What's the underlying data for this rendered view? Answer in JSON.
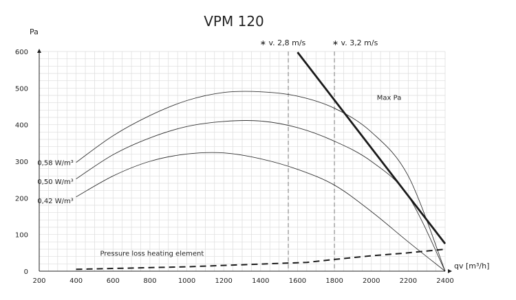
{
  "chart_data": {
    "type": "line",
    "title": "VPM 120",
    "xlabel": "qv [m³/h]",
    "ylabel": "Pa",
    "xlim": [
      200,
      2400
    ],
    "ylim": [
      0,
      600
    ],
    "x_ticks": [
      200,
      400,
      600,
      800,
      1000,
      1200,
      1400,
      1600,
      1800,
      2000,
      2200,
      2400
    ],
    "y_ticks": [
      0,
      100,
      200,
      300,
      400,
      500,
      600
    ],
    "grid": true,
    "series": [
      {
        "name": "0,58 W/m³",
        "style": "thin",
        "color": "#333333",
        "x": [
          400,
          600,
          800,
          1000,
          1200,
          1400,
          1600,
          1800,
          2000,
          2200,
          2400
        ],
        "y": [
          297,
          370,
          425,
          466,
          488,
          490,
          478,
          445,
          380,
          260,
          0
        ]
      },
      {
        "name": "0,50 W/m³",
        "style": "thin",
        "color": "#333333",
        "x": [
          400,
          600,
          800,
          1000,
          1200,
          1400,
          1600,
          1800,
          2000,
          2200,
          2400
        ],
        "y": [
          252,
          318,
          364,
          395,
          409,
          410,
          392,
          355,
          300,
          205,
          0
        ]
      },
      {
        "name": "0,42 W/m³",
        "style": "thin",
        "color": "#333333",
        "x": [
          400,
          600,
          800,
          1000,
          1200,
          1400,
          1600,
          1800,
          2000,
          2200,
          2400
        ],
        "y": [
          203,
          260,
          300,
          320,
          323,
          307,
          278,
          235,
          163,
          80,
          0
        ]
      },
      {
        "name": "Max Pa",
        "style": "bold",
        "color": "#1a1a1a",
        "x": [
          1600,
          2400
        ],
        "y": [
          598,
          75
        ]
      },
      {
        "name": "Pressure loss heating element",
        "style": "dashed",
        "color": "#1a1a1a",
        "x": [
          400,
          1000,
          1600,
          1650,
          1800,
          2000,
          2200,
          2400
        ],
        "y": [
          5,
          12,
          23,
          24,
          32,
          42,
          50,
          60
        ]
      }
    ],
    "vertical_markers": [
      {
        "label": "∗ v. 2,8 m/s",
        "x": 1550,
        "color": "#aaaaaa"
      },
      {
        "label": "∗ v. 3,2 m/s",
        "x": 1800,
        "color": "#aaaaaa"
      }
    ],
    "annotations": [
      {
        "text": "Max Pa",
        "x": 2030,
        "y": 468
      },
      {
        "text": "0,58 W/m³",
        "x": 190,
        "y": 290
      },
      {
        "text": "0,50 W/m³",
        "x": 190,
        "y": 238
      },
      {
        "text": "0,42 W/m³",
        "x": 190,
        "y": 186
      },
      {
        "text": "Pressure loss heating element",
        "x": 530,
        "y": 42
      }
    ]
  }
}
